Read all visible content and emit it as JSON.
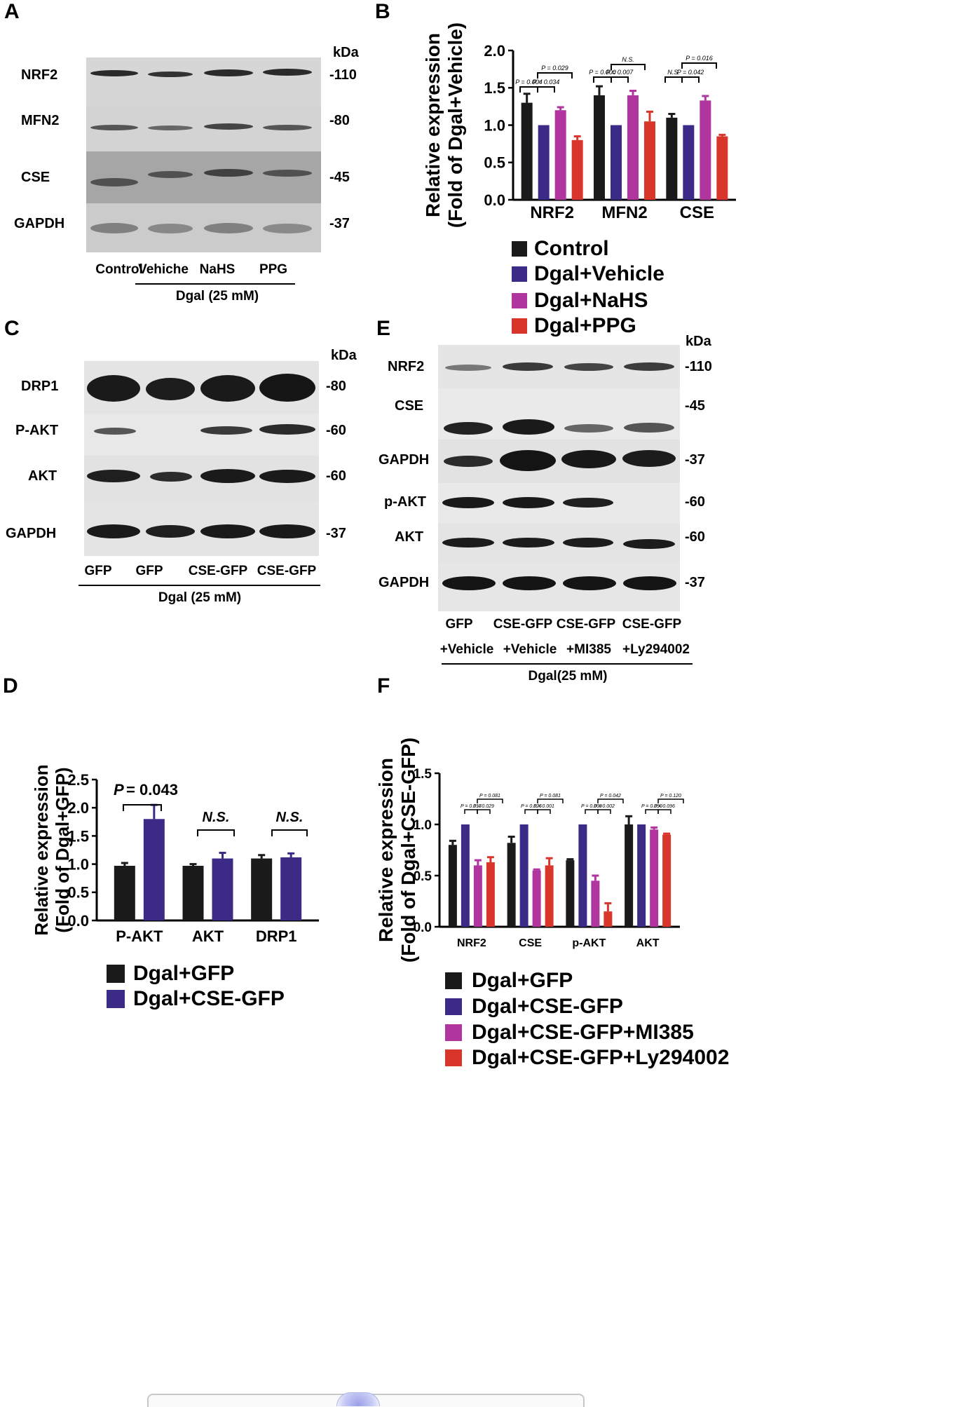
{
  "panels": {
    "A": {
      "letter": "A",
      "kda_header": "kDa",
      "rows": [
        {
          "name": "NRF2",
          "kda": "-110"
        },
        {
          "name": "MFN2",
          "kda": "-80"
        },
        {
          "name": "CSE",
          "kda": "-45"
        },
        {
          "name": "GAPDH",
          "kda": "-37"
        }
      ],
      "lanes": [
        "Control",
        "Vehiche",
        "NaHS",
        "PPG"
      ],
      "treatment": "Dgal (25 mM)"
    },
    "B": {
      "letter": "B",
      "legend": [
        "Control",
        "Dgal+Vehicle",
        "Dgal+NaHS",
        "Dgal+PPG"
      ],
      "annotations": [
        "P = 0.004",
        "P = 0.034",
        "P = 0.029",
        "P = 0.000",
        "P = 0.007",
        "N.S.",
        "N.S.",
        "P = 0.042",
        "P = 0.016"
      ]
    },
    "C": {
      "letter": "C",
      "kda_header": "kDa",
      "rows": [
        {
          "name": "DRP1",
          "kda": "-80"
        },
        {
          "name": "P-AKT",
          "kda": "-60"
        },
        {
          "name": "AKT",
          "kda": "-60"
        },
        {
          "name": "GAPDH",
          "kda": "-37"
        }
      ],
      "lanes": [
        "GFP",
        "GFP",
        "CSE-GFP",
        "CSE-GFP"
      ],
      "treatment": "Dgal (25 mM)"
    },
    "D": {
      "letter": "D",
      "legend": [
        "Dgal+GFP",
        "Dgal+CSE-GFP"
      ],
      "annotations": [
        "P",
        "= 0.043",
        "N.S.",
        "N.S."
      ]
    },
    "E": {
      "letter": "E",
      "kda_header": "kDa",
      "rows": [
        {
          "name": "NRF2",
          "kda": "-110"
        },
        {
          "name": "CSE",
          "kda": "-45"
        },
        {
          "name": "GAPDH",
          "kda": "-37"
        },
        {
          "name": "p-AKT",
          "kda": "-60"
        },
        {
          "name": "AKT",
          "kda": "-60"
        },
        {
          "name": "GAPDH",
          "kda": "-37"
        }
      ],
      "lanes_top": [
        "GFP",
        "CSE-GFP",
        "CSE-GFP",
        "CSE-GFP"
      ],
      "lanes_bottom": [
        "+Vehicle",
        "+Vehicle",
        "+MI385",
        "+Ly294002"
      ],
      "treatment": "Dgal(25 mM)"
    },
    "F": {
      "letter": "F",
      "legend": [
        "Dgal+GFP",
        "Dgal+CSE-GFP",
        "Dgal+CSE-GFP+MI385",
        "Dgal+CSE-GFP+Ly294002"
      ],
      "annotations": [
        "P = 0.013",
        "P = 0.029",
        "P = 0.026",
        "P = 0.028",
        "P = 0.001",
        "P = 0.081",
        "P = 0.009",
        "P = 0.002",
        "P = 0.042",
        "P = 0.090",
        "P = 0.096",
        "P = 0.120"
      ]
    }
  },
  "colors": {
    "black": "#1a1a1a",
    "navy": "#3b2a86",
    "magenta": "#b1359e",
    "red": "#d8362b"
  },
  "chart_data": [
    {
      "id": "B",
      "type": "bar",
      "ylabel": "Relative expression\n(Fold of Dgal+Vehicle)",
      "ylim": [
        0,
        2.0
      ],
      "yticks": [
        "0.0",
        "0.5",
        "1.0",
        "1.5",
        "2.0"
      ],
      "categories": [
        "NRF2",
        "MFN2",
        "CSE"
      ],
      "series": [
        {
          "name": "Control",
          "values": [
            1.3,
            1.4,
            1.1
          ],
          "errors": [
            0.12,
            0.12,
            0.05
          ]
        },
        {
          "name": "Dgal+Vehicle",
          "values": [
            1.0,
            1.0,
            1.0
          ],
          "errors": [
            0,
            0,
            0
          ]
        },
        {
          "name": "Dgal+NaHS",
          "values": [
            1.2,
            1.4,
            1.33
          ],
          "errors": [
            0.04,
            0.06,
            0.06
          ]
        },
        {
          "name": "Dgal+PPG",
          "values": [
            0.8,
            1.05,
            0.85
          ],
          "errors": [
            0.05,
            0.13,
            0.02
          ]
        }
      ]
    },
    {
      "id": "D",
      "type": "bar",
      "ylabel": "Relative expression\n(Fold of Dgal+GFP)",
      "ylim": [
        0,
        2.5
      ],
      "yticks": [
        "0.0",
        "0.5",
        "1.0",
        "1.5",
        "2.0",
        "2.5"
      ],
      "categories": [
        "P-AKT",
        "AKT",
        "DRP1"
      ],
      "series": [
        {
          "name": "Dgal+GFP",
          "values": [
            0.97,
            0.97,
            1.1
          ],
          "errors": [
            0.05,
            0.03,
            0.06
          ]
        },
        {
          "name": "Dgal+CSE-GFP",
          "values": [
            1.8,
            1.1,
            1.12
          ],
          "errors": [
            0.25,
            0.1,
            0.07
          ]
        }
      ]
    },
    {
      "id": "F",
      "type": "bar",
      "ylabel": "Relative expression\n(Fold of Dgal+CSE-GFP)",
      "ylim": [
        0,
        1.5
      ],
      "yticks": [
        "0.0",
        "0.5",
        "1.0",
        "1.5"
      ],
      "categories": [
        "NRF2",
        "CSE",
        "p-AKT",
        "AKT"
      ],
      "series": [
        {
          "name": "Dgal+GFP",
          "values": [
            0.8,
            0.82,
            0.65,
            1.0
          ],
          "errors": [
            0.04,
            0.06,
            0.01,
            0.08
          ]
        },
        {
          "name": "Dgal+CSE-GFP",
          "values": [
            1.0,
            1.0,
            1.0,
            1.0
          ],
          "errors": [
            0,
            0,
            0,
            0
          ]
        },
        {
          "name": "Dgal+CSE-GFP+MI385",
          "values": [
            0.6,
            0.55,
            0.45,
            0.95
          ],
          "errors": [
            0.05,
            0.01,
            0.05,
            0.02
          ]
        },
        {
          "name": "Dgal+CSE-GFP+Ly294002",
          "values": [
            0.63,
            0.6,
            0.15,
            0.9
          ],
          "errors": [
            0.05,
            0.07,
            0.08,
            0.01
          ]
        }
      ]
    }
  ]
}
